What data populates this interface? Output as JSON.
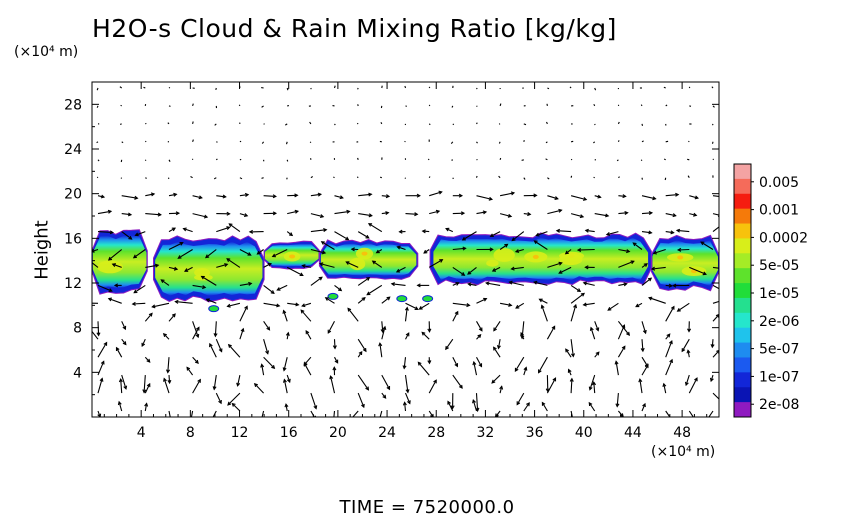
{
  "chart_data": {
    "type": "contour-vector",
    "title": "H2O-s Cloud & Rain Mixing Ratio [kg/kg]",
    "ylabel": "Height",
    "yunit": "(×10⁴ m)",
    "xunit": "(×10⁴ m)",
    "xlim": [
      0,
      51
    ],
    "ylim": [
      0,
      30
    ],
    "xticks": [
      "4",
      "8",
      "12",
      "16",
      "20",
      "24",
      "28",
      "32",
      "36",
      "40",
      "44",
      "48"
    ],
    "yticks": [
      "4",
      "8",
      "12",
      "16",
      "20",
      "24",
      "28"
    ],
    "colorbar": {
      "labels": [
        "0.005",
        "0.001",
        "0.0002",
        "5e-05",
        "1e-05",
        "2e-06",
        "5e-07",
        "1e-07",
        "2e-08"
      ],
      "colors": [
        "#f4a3a3",
        "#f56b5a",
        "#f51d10",
        "#f57a0a",
        "#f7c20c",
        "#d8ee1a",
        "#a5ec26",
        "#5ee22c",
        "#21dd3a",
        "#24e08f",
        "#25e6cc",
        "#1fc3ec",
        "#1e8cf0",
        "#1b5af0",
        "#1226d8",
        "#0a14b4",
        "#8f1ac0"
      ]
    },
    "cloud_layer_bounds": {
      "bottom_km": 11.0,
      "top_km": 17.0
    },
    "cloud_patches": [
      {
        "x0": 0.0,
        "x1": 4.5,
        "y0": 11.0,
        "y1": 16.9
      },
      {
        "x0": 5.0,
        "x1": 14.0,
        "y0": 10.3,
        "y1": 16.3
      },
      {
        "x0": 14.0,
        "x1": 18.5,
        "y0": 13.2,
        "y1": 15.8
      },
      {
        "x0": 18.5,
        "x1": 26.5,
        "y0": 12.3,
        "y1": 15.9
      },
      {
        "x0": 27.5,
        "x1": 45.5,
        "y0": 11.8,
        "y1": 16.5
      },
      {
        "x0": 45.5,
        "x1": 51.0,
        "y0": 11.3,
        "y1": 16.3
      }
    ],
    "small_patches": [
      {
        "x": 9.9,
        "y": 9.7
      },
      {
        "x": 19.6,
        "y": 10.8
      },
      {
        "x": 25.2,
        "y": 10.6
      },
      {
        "x": 27.3,
        "y": 10.6
      }
    ]
  },
  "footer": "TIME  =  7520000.0"
}
